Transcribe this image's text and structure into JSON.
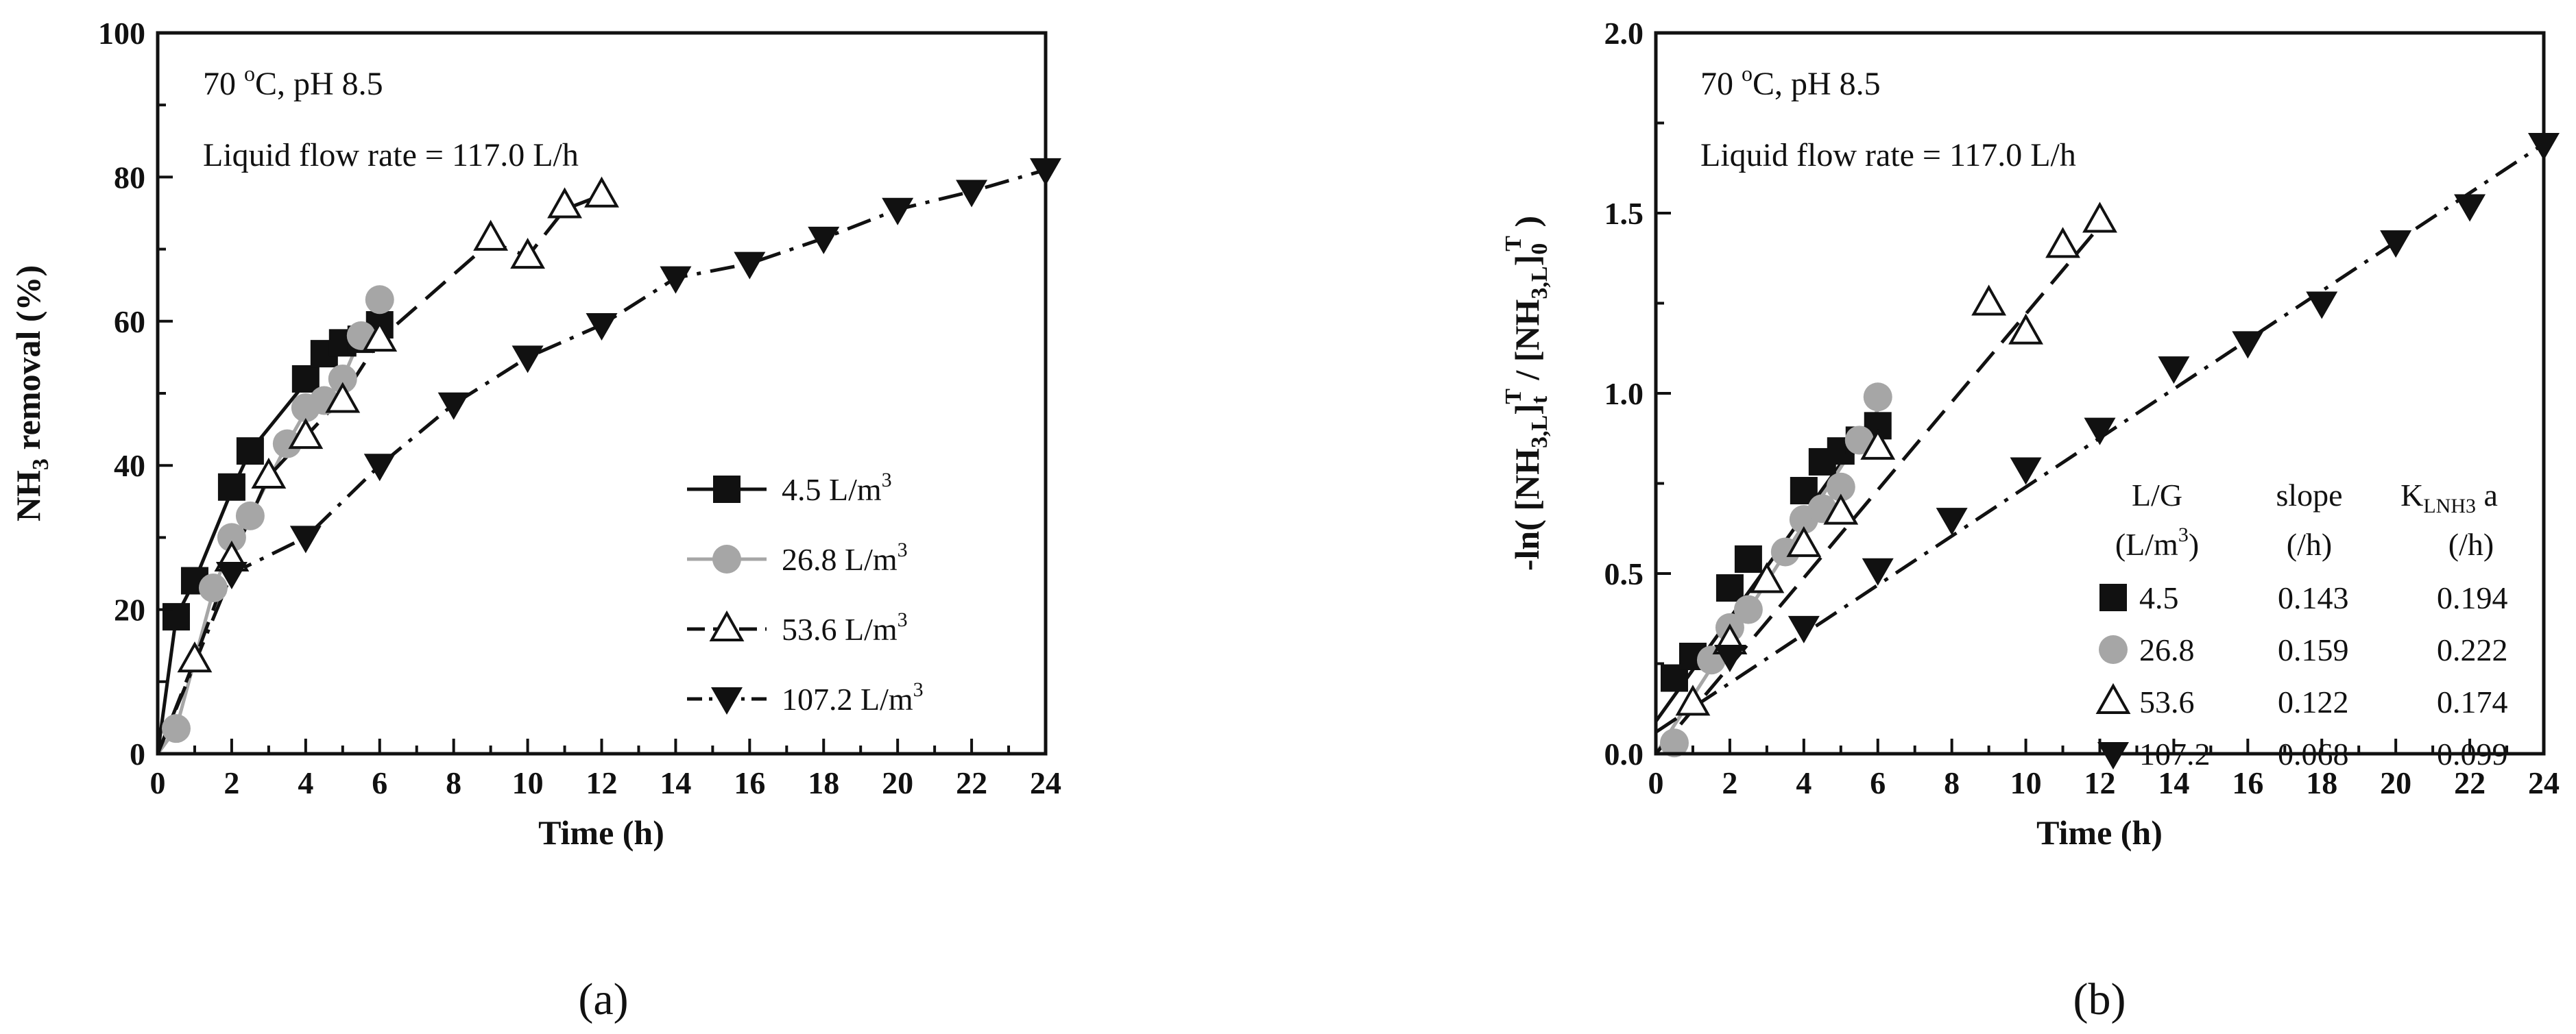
{
  "chart_data": [
    {
      "panel": "(a)",
      "type": "line",
      "title": "",
      "xlabel": "Time (h)",
      "ylabel_main": "NH",
      "ylabel_sub": "3",
      "ylabel_rest": " removal (%)",
      "xlim": [
        0,
        24
      ],
      "ylim": [
        0,
        100
      ],
      "xticks": [
        0,
        2,
        4,
        6,
        8,
        10,
        12,
        14,
        16,
        18,
        20,
        22,
        24
      ],
      "yticks": [
        0,
        20,
        40,
        60,
        80,
        100
      ],
      "annotations": {
        "line1_main": "70 ",
        "line1_sup": "o",
        "line1_rest": "C, pH 8.5",
        "line2": "Liquid flow rate = 117.0 L/h"
      },
      "series": [
        {
          "name": "4.5 L/m",
          "name_sup": "3",
          "color": "#111111",
          "marker": "square",
          "dash": "solid",
          "points": [
            [
              0.5,
              19
            ],
            [
              1,
              24
            ],
            [
              2,
              37
            ],
            [
              2.5,
              42
            ],
            [
              4,
              52
            ],
            [
              4.5,
              55.5
            ],
            [
              5,
              57
            ],
            [
              5.5,
              57.5
            ],
            [
              6,
              59.5
            ]
          ],
          "fit": [
            [
              0,
              0
            ],
            [
              0.5,
              19
            ],
            [
              1,
              24
            ],
            [
              2,
              36.5
            ],
            [
              2.5,
              42
            ],
            [
              4,
              51.5
            ],
            [
              4.5,
              55.5
            ],
            [
              5,
              57
            ],
            [
              5.5,
              57.5
            ],
            [
              6,
              59.5
            ]
          ]
        },
        {
          "name": "26.8 L/m",
          "name_sup": "3",
          "color": "#a6a6a6",
          "marker": "circle",
          "dash": "solid",
          "points": [
            [
              0.5,
              3.5
            ],
            [
              1.5,
              23
            ],
            [
              2,
              30
            ],
            [
              2.5,
              33
            ],
            [
              3.5,
              43
            ],
            [
              4,
              48
            ],
            [
              4.5,
              49
            ],
            [
              5,
              52
            ],
            [
              5.5,
              58
            ],
            [
              6,
              63
            ]
          ],
          "fit": [
            [
              0,
              0
            ],
            [
              0.5,
              3.5
            ],
            [
              1.5,
              22.5
            ],
            [
              2,
              29.5
            ],
            [
              2.5,
              33
            ],
            [
              3.5,
              43
            ],
            [
              4,
              47.5
            ],
            [
              4.5,
              49
            ],
            [
              5,
              52
            ],
            [
              5.5,
              58
            ],
            [
              6,
              63
            ]
          ]
        },
        {
          "name": "53.6 L/m",
          "name_sup": "3",
          "color": "#111111",
          "marker": "triangle-up-open",
          "dash": "dash",
          "points": [
            [
              1,
              13
            ],
            [
              2,
              27
            ],
            [
              3,
              38.5
            ],
            [
              4,
              44
            ],
            [
              5,
              49
            ],
            [
              6,
              57.5
            ],
            [
              9,
              71.5
            ],
            [
              10,
              69
            ],
            [
              11,
              76
            ],
            [
              12,
              77.5
            ]
          ],
          "fit": [
            [
              0,
              0
            ],
            [
              1,
              13
            ],
            [
              2,
              27
            ],
            [
              3,
              38.5
            ],
            [
              4,
              44
            ],
            [
              5,
              49.5
            ],
            [
              6,
              57.5
            ],
            [
              9,
              71
            ],
            [
              10,
              69
            ],
            [
              11,
              75.5
            ],
            [
              12,
              77.5
            ]
          ]
        },
        {
          "name": "107.2 L/m",
          "name_sup": "3",
          "color": "#111111",
          "marker": "triangle-down",
          "dash": "dashdot",
          "points": [
            [
              2,
              25
            ],
            [
              4,
              30
            ],
            [
              6,
              40
            ],
            [
              8,
              48.5
            ],
            [
              10,
              55
            ],
            [
              12,
              59.5
            ],
            [
              14,
              66
            ],
            [
              16,
              68
            ],
            [
              18,
              71.5
            ],
            [
              20,
              75.5
            ],
            [
              22,
              78
            ],
            [
              24,
              81
            ]
          ],
          "fit": [
            [
              0,
              0
            ],
            [
              2,
              25
            ],
            [
              4,
              30
            ],
            [
              6,
              40
            ],
            [
              8,
              48.5
            ],
            [
              10,
              55
            ],
            [
              12,
              59.5
            ],
            [
              14,
              66
            ],
            [
              16,
              68
            ],
            [
              18,
              71.5
            ],
            [
              20,
              75.5
            ],
            [
              22,
              78
            ],
            [
              24,
              81
            ]
          ]
        }
      ]
    },
    {
      "panel": "(b)",
      "type": "scatter",
      "title": "",
      "xlabel": "Time (h)",
      "ylabel": "-ln( [NH3,L]tT / [NH3,L]0T )",
      "ylabel_parts": {
        "a": "-ln( [NH",
        "b_sub": "3,L",
        "c": "]",
        "d_sub": "t",
        "e_sup": "T",
        "f": " / [NH",
        "g_sub": "3,L",
        "h": "]",
        "i_sub": "0",
        "j_sup": "T",
        "k": " )"
      },
      "xlim": [
        0,
        24
      ],
      "ylim": [
        0,
        2.0
      ],
      "xticks": [
        0,
        2,
        4,
        6,
        8,
        10,
        12,
        14,
        16,
        18,
        20,
        22,
        24
      ],
      "yticks": [
        "0.0",
        "0.5",
        "1.0",
        "1.5",
        "2.0"
      ],
      "annotations": {
        "line1_main": "70 ",
        "line1_sup": "o",
        "line1_rest": "C, pH 8.5",
        "line2": "Liquid flow rate = 117.0 L/h"
      },
      "table": {
        "headers": [
          "L/G",
          "slope",
          "K"
        ],
        "k_sub": "LNH3",
        "k_suffix": " a",
        "units": [
          "(L/m",
          "(/h)",
          "(/h)"
        ],
        "unit_sup": "3",
        "unit_close": ")",
        "rows": [
          {
            "lg": "4.5",
            "slope": "0.143",
            "kla": "0.194"
          },
          {
            "lg": "26.8",
            "slope": "0.159",
            "kla": "0.222"
          },
          {
            "lg": "53.6",
            "slope": "0.122",
            "kla": "0.174"
          },
          {
            "lg": "107.2",
            "slope": "0.068",
            "kla": "0.099"
          }
        ]
      },
      "series": [
        {
          "name": "4.5",
          "color": "#111111",
          "marker": "square",
          "dash": "solid",
          "slope": 0.143,
          "points": [
            [
              0.5,
              0.21
            ],
            [
              1,
              0.27
            ],
            [
              2,
              0.46
            ],
            [
              2.5,
              0.54
            ],
            [
              4,
              0.73
            ],
            [
              4.5,
              0.81
            ],
            [
              5,
              0.84
            ],
            [
              5.5,
              0.87
            ],
            [
              6,
              0.91
            ]
          ],
          "fit": [
            [
              0,
              0.09
            ],
            [
              6,
              0.948
            ]
          ]
        },
        {
          "name": "26.8",
          "color": "#a6a6a6",
          "marker": "circle",
          "dash": "solid",
          "slope": 0.159,
          "points": [
            [
              0.5,
              0.03
            ],
            [
              1.5,
              0.26
            ],
            [
              2,
              0.35
            ],
            [
              2.5,
              0.4
            ],
            [
              3.5,
              0.56
            ],
            [
              4,
              0.65
            ],
            [
              4.5,
              0.68
            ],
            [
              5,
              0.74
            ],
            [
              5.5,
              0.87
            ],
            [
              6,
              0.99
            ]
          ],
          "fit": [
            [
              0,
              0.0
            ],
            [
              6,
              0.954
            ]
          ]
        },
        {
          "name": "53.6",
          "color": "#111111",
          "marker": "triangle-up-open",
          "dash": "dash",
          "slope": 0.122,
          "points": [
            [
              1,
              0.14
            ],
            [
              2,
              0.31
            ],
            [
              3,
              0.48
            ],
            [
              4,
              0.58
            ],
            [
              5,
              0.67
            ],
            [
              6,
              0.85
            ],
            [
              9,
              1.25
            ],
            [
              10,
              1.17
            ],
            [
              11,
              1.41
            ],
            [
              12,
              1.48
            ]
          ],
          "fit": [
            [
              0,
              0.0
            ],
            [
              12,
              1.464
            ]
          ]
        },
        {
          "name": "107.2",
          "color": "#111111",
          "marker": "triangle-down",
          "dash": "dashdot",
          "slope": 0.068,
          "points": [
            [
              2,
              0.27
            ],
            [
              4,
              0.35
            ],
            [
              6,
              0.51
            ],
            [
              8,
              0.65
            ],
            [
              10,
              0.79
            ],
            [
              12,
              0.9
            ],
            [
              14,
              1.07
            ],
            [
              16,
              1.14
            ],
            [
              18,
              1.25
            ],
            [
              20,
              1.42
            ],
            [
              22,
              1.52
            ],
            [
              24,
              1.69
            ]
          ],
          "fit": [
            [
              0,
              0.06
            ],
            [
              24,
              1.692
            ]
          ]
        }
      ]
    }
  ],
  "captions": {
    "a": "(a)",
    "b": "(b)"
  }
}
